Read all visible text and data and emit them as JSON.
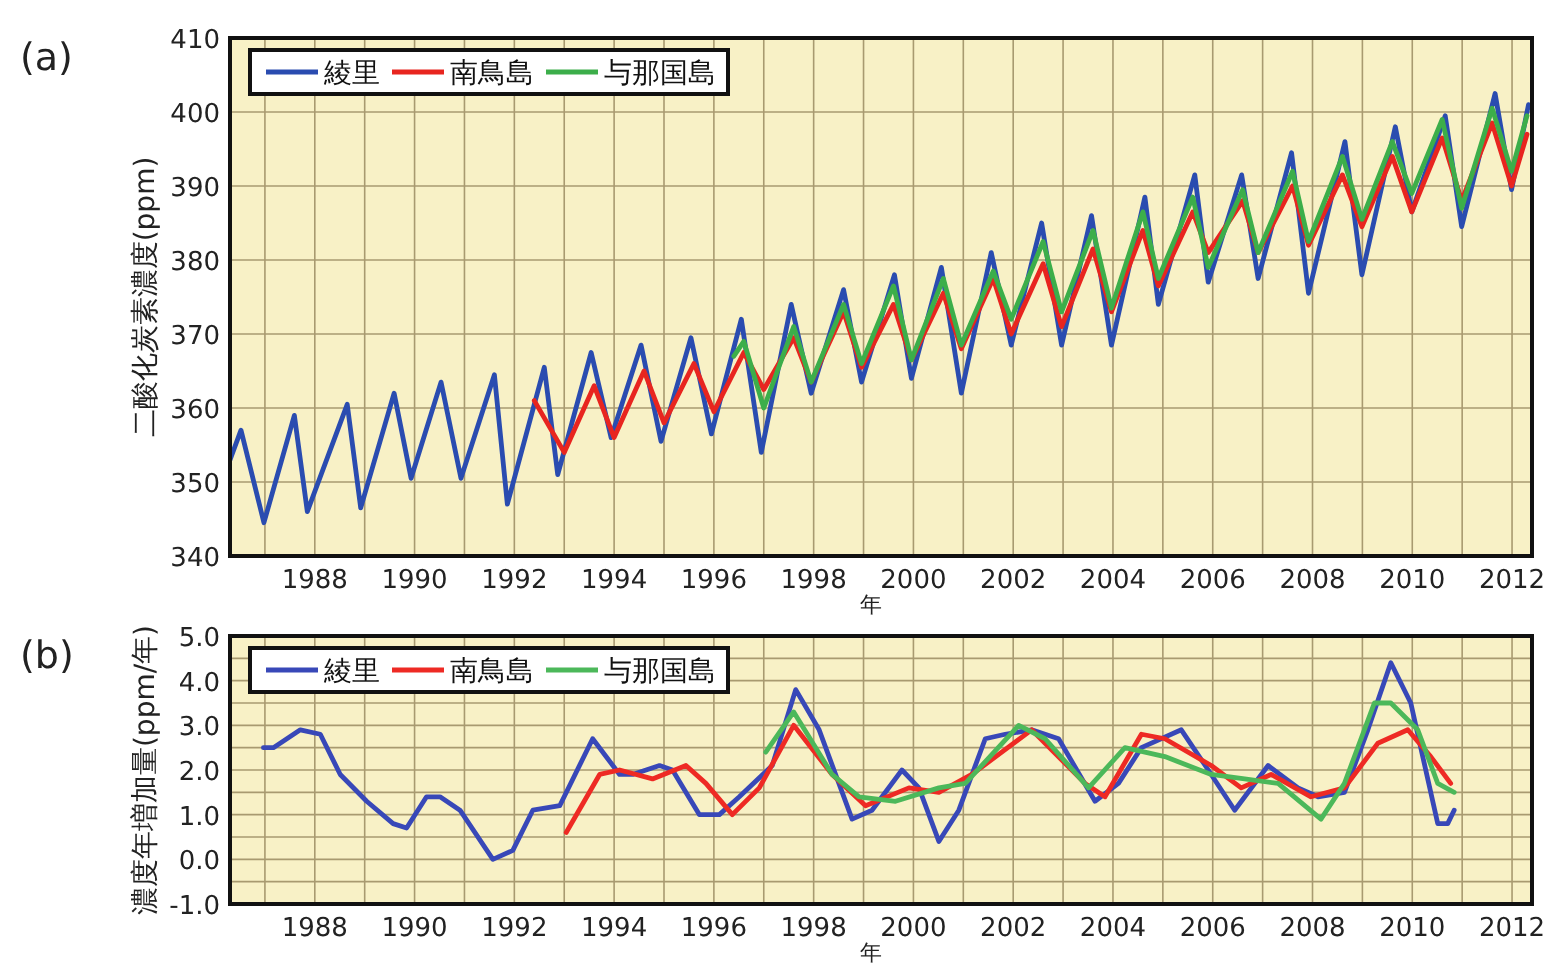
{
  "chart_data": [
    {
      "type": "line",
      "title": "(a)",
      "xlabel": "年",
      "ylabel": "二酸化炭素濃度(ppm)",
      "grid": true,
      "legend": "top left",
      "xlim": [
        1986.3,
        2012.4
      ],
      "xticks": [
        {
          "value": 1987,
          "label": null
        },
        1988,
        {
          "value": 1989,
          "label": null
        },
        1990,
        {
          "value": 1991,
          "label": null
        },
        1992,
        {
          "value": 1993,
          "label": null
        },
        1994,
        {
          "value": 1995,
          "label": null
        },
        1996,
        {
          "value": 1997,
          "label": null
        },
        1998,
        {
          "value": 1999,
          "label": null
        },
        2000,
        {
          "value": 2001,
          "label": null
        },
        2002,
        {
          "value": 2003,
          "label": null
        },
        2004,
        {
          "value": 2005,
          "label": null
        },
        2006,
        {
          "value": 2007,
          "label": null
        },
        2008,
        {
          "value": 2009,
          "label": null
        },
        2010,
        {
          "value": 2011,
          "label": null
        },
        2012
      ],
      "ylim": [
        340,
        410
      ],
      "yticks": [
        340,
        350,
        360,
        370,
        380,
        390,
        400,
        410
      ],
      "series": [
        {
          "name": "綾里",
          "color": "#2a4cb0",
          "x": [
            1986.3,
            1986.52,
            1986.98,
            1987.59,
            1987.85,
            1988.65,
            1988.92,
            1989.59,
            1989.93,
            1990.53,
            1990.93,
            1991.6,
            1991.86,
            1992.6,
            1992.87,
            1993.54,
            1993.94,
            1994.54,
            1994.94,
            1995.54,
            1995.95,
            1996.55,
            1996.95,
            1997.55,
            1997.95,
            1998.6,
            1998.96,
            1999.62,
            1999.96,
            2000.56,
            2000.96,
            2001.56,
            2001.96,
            2002.57,
            2002.97,
            2003.57,
            2003.97,
            2004.64,
            2004.91,
            2005.64,
            2005.91,
            2006.58,
            2006.91,
            2007.58,
            2007.92,
            2008.65,
            2008.99,
            2009.66,
            2009.99,
            2010.66,
            2010.99,
            2011.66,
            2011.99,
            2012.33
          ],
          "values": [
            353,
            357,
            344.5,
            359,
            346,
            360.5,
            346.5,
            362,
            350.5,
            363.5,
            350.5,
            364.5,
            347,
            365.5,
            351,
            367.5,
            356,
            368.5,
            355.5,
            369.5,
            356.5,
            372,
            354,
            374,
            362,
            376,
            363.5,
            378,
            364,
            379,
            362,
            381,
            368.5,
            385,
            368.5,
            386,
            368.5,
            388.5,
            374,
            391.5,
            377,
            391.5,
            377.5,
            394.5,
            375.5,
            396,
            378,
            398,
            386.5,
            399.5,
            384.5,
            402.5,
            389.5,
            401
          ]
        },
        {
          "name": "南鳥島",
          "color": "#e8251f",
          "x": [
            1992.4,
            1993.0,
            1993.6,
            1994.0,
            1994.6,
            1995.0,
            1995.6,
            1996.0,
            1996.6,
            1997.0,
            1997.6,
            1997.95,
            1998.6,
            1998.96,
            1999.6,
            1999.96,
            2000.6,
            2000.96,
            2001.6,
            2001.96,
            2002.6,
            2002.97,
            2003.6,
            2003.97,
            2004.6,
            2004.91,
            2005.6,
            2005.91,
            2006.6,
            2006.91,
            2007.6,
            2007.92,
            2008.6,
            2008.99,
            2009.6,
            2009.99,
            2010.6,
            2010.99,
            2011.6,
            2011.99,
            2012.3
          ],
          "values": [
            361,
            354,
            363,
            356,
            365,
            358,
            366,
            359.5,
            367.5,
            362.5,
            369.5,
            363.5,
            373,
            365.5,
            374,
            366.5,
            375.5,
            368,
            377.5,
            370,
            379.5,
            371,
            381.5,
            373,
            384,
            376.5,
            386.5,
            381,
            388,
            381,
            390,
            382,
            391.5,
            384.5,
            394,
            386.5,
            396.5,
            388,
            398.5,
            390,
            397
          ]
        },
        {
          "name": "与那国島",
          "color": "#3cae4a",
          "x": [
            1996.4,
            1996.6,
            1997.0,
            1997.6,
            1997.95,
            1998.6,
            1998.96,
            1999.6,
            1999.96,
            2000.6,
            2000.96,
            2001.6,
            2001.96,
            2002.6,
            2002.97,
            2003.6,
            2003.97,
            2004.6,
            2004.91,
            2005.6,
            2005.91,
            2006.6,
            2006.91,
            2007.6,
            2007.92,
            2008.6,
            2008.99,
            2009.6,
            2009.99,
            2010.6,
            2010.99,
            2011.6,
            2011.99,
            2012.3
          ],
          "values": [
            367,
            369,
            360,
            371,
            363.5,
            374,
            366,
            376.5,
            366.5,
            377.5,
            368.5,
            378.5,
            372,
            382.5,
            373,
            384,
            373.5,
            386.5,
            377.5,
            388.5,
            379,
            389.5,
            381,
            392,
            382.5,
            394,
            385.5,
            396,
            389,
            399,
            387,
            400.5,
            392,
            399.5
          ]
        }
      ]
    },
    {
      "type": "line",
      "title": "(b)",
      "xlabel": "年",
      "ylabel": "濃度年増加量(ppm/年)",
      "grid": true,
      "legend": "top left",
      "xlim": [
        1986.3,
        2012.4
      ],
      "xticks": [
        {
          "value": 1987,
          "label": null
        },
        1988,
        {
          "value": 1989,
          "label": null
        },
        1990,
        {
          "value": 1991,
          "label": null
        },
        1992,
        {
          "value": 1993,
          "label": null
        },
        1994,
        {
          "value": 1995,
          "label": null
        },
        1996,
        {
          "value": 1997,
          "label": null
        },
        1998,
        {
          "value": 1999,
          "label": null
        },
        2000,
        {
          "value": 2001,
          "label": null
        },
        2002,
        {
          "value": 2003,
          "label": null
        },
        2004,
        {
          "value": 2005,
          "label": null
        },
        2006,
        {
          "value": 2007,
          "label": null
        },
        2008,
        {
          "value": 2009,
          "label": null
        },
        2010,
        {
          "value": 2011,
          "label": null
        },
        2012
      ],
      "ylim": [
        -1,
        5
      ],
      "yticks": [
        {
          "value": -1,
          "label": "-1.0"
        },
        {
          "value": -0.5,
          "label": null
        },
        {
          "value": 0,
          "label": "0.0"
        },
        {
          "value": 0.5,
          "label": null
        },
        {
          "value": 1,
          "label": "1.0"
        },
        {
          "value": 1.5,
          "label": null
        },
        {
          "value": 2,
          "label": "2.0"
        },
        {
          "value": 2.5,
          "label": null
        },
        {
          "value": 3,
          "label": "3.0"
        },
        {
          "value": 3.5,
          "label": null
        },
        {
          "value": 4,
          "label": "4.0"
        },
        {
          "value": 4.5,
          "label": null
        },
        {
          "value": 5,
          "label": "5.0"
        }
      ],
      "series": [
        {
          "name": "綾里",
          "color": "#3848b8",
          "x": [
            1986.97,
            1987.17,
            1987.71,
            1988.11,
            1988.51,
            1989.04,
            1989.57,
            1989.84,
            1990.24,
            1990.51,
            1990.91,
            1991.57,
            1991.97,
            1992.37,
            1992.91,
            1993.57,
            1994.11,
            1994.37,
            1994.91,
            1995.17,
            1995.71,
            1996.11,
            1996.51,
            1997.17,
            1997.64,
            1998.11,
            1998.77,
            1999.17,
            1999.77,
            2000.11,
            2000.51,
            2000.91,
            2001.44,
            2001.84,
            2002.37,
            2002.91,
            2003.64,
            2004.11,
            2004.57,
            2005.37,
            2005.91,
            2006.44,
            2007.11,
            2007.71,
            2008.11,
            2008.64,
            2009.11,
            2009.57,
            2009.97,
            2010.51,
            2010.71,
            2010.84
          ],
          "values": [
            2.5,
            2.5,
            2.9,
            2.8,
            1.9,
            1.3,
            0.8,
            0.7,
            1.4,
            1.4,
            1.1,
            0.0,
            0.2,
            1.1,
            1.2,
            2.7,
            1.9,
            1.9,
            2.1,
            2.0,
            1.0,
            1.0,
            1.4,
            2.1,
            3.8,
            2.9,
            0.9,
            1.1,
            2.0,
            1.6,
            0.4,
            1.1,
            2.7,
            2.8,
            2.9,
            2.7,
            1.3,
            1.7,
            2.5,
            2.9,
            2.0,
            1.1,
            2.1,
            1.6,
            1.4,
            1.5,
            2.9,
            4.4,
            3.5,
            0.8,
            0.8,
            1.1
          ]
        },
        {
          "name": "南鳥島",
          "color": "#ee2a24",
          "x": [
            1993.04,
            1993.71,
            1994.11,
            1994.77,
            1995.44,
            1995.84,
            1996.37,
            1996.91,
            1997.6,
            1998.37,
            1999.04,
            1999.91,
            2000.51,
            2001.17,
            2002.37,
            2003.44,
            2003.84,
            2004.57,
            2005.04,
            2005.97,
            2006.57,
            2007.17,
            2007.97,
            2008.64,
            2009.31,
            2009.91,
            2010.37,
            2010.77
          ],
          "values": [
            0.6,
            1.9,
            2.0,
            1.8,
            2.1,
            1.7,
            1.0,
            1.6,
            3.0,
            1.9,
            1.2,
            1.6,
            1.5,
            1.9,
            2.9,
            1.7,
            1.4,
            2.8,
            2.7,
            2.1,
            1.6,
            1.9,
            1.4,
            1.6,
            2.6,
            2.9,
            2.3,
            1.7
          ]
        },
        {
          "name": "与那国島",
          "color": "#4cb85a",
          "x": [
            1997.04,
            1997.6,
            1998.37,
            1998.91,
            1999.64,
            2000.51,
            2001.04,
            2002.11,
            2002.64,
            2003.51,
            2004.24,
            2005.04,
            2005.97,
            2006.64,
            2007.31,
            2008.17,
            2008.64,
            2009.24,
            2009.57,
            2010.11,
            2010.51,
            2010.84
          ],
          "values": [
            2.4,
            3.3,
            1.9,
            1.4,
            1.3,
            1.6,
            1.7,
            3.0,
            2.7,
            1.6,
            2.5,
            2.3,
            1.9,
            1.8,
            1.7,
            0.9,
            1.7,
            3.5,
            3.5,
            2.9,
            1.7,
            1.5
          ]
        }
      ]
    }
  ]
}
